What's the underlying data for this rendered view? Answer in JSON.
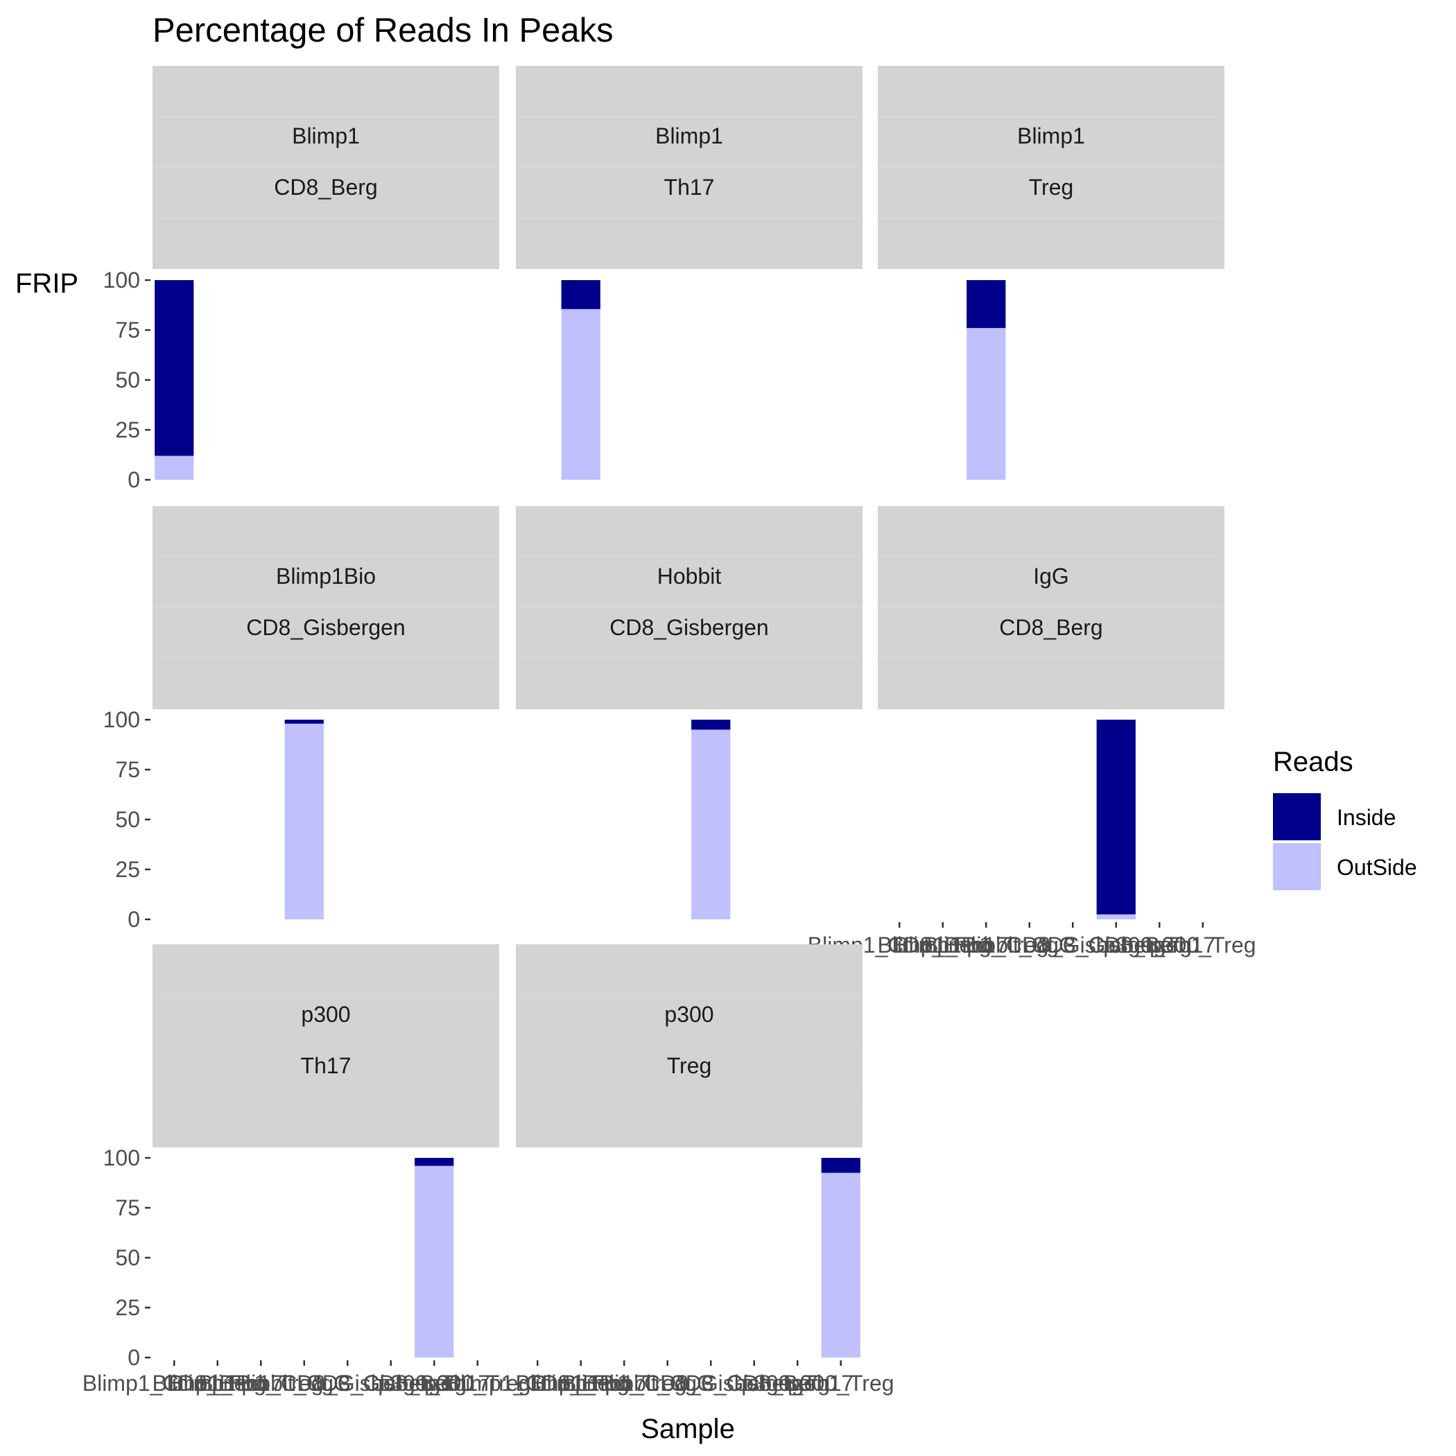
{
  "chart_data": {
    "type": "bar",
    "stacked": true,
    "title": "Percentage of Reads In Peaks",
    "xlabel": "Sample",
    "ylabel": "FRIP",
    "ylim": [
      0,
      100
    ],
    "yticks": [
      0,
      25,
      50,
      75,
      100
    ],
    "categories": [
      "Blimp1_CD8_Berg",
      "Blimp1_Th17",
      "Blimp1_Treg",
      "Blimp1Bio_CD8_Gisbergen",
      "Hobbit_CD8_Gisbergen",
      "IgG_CD8_Berg",
      "p300_Th17",
      "p300_Treg"
    ],
    "legend": {
      "title": "Reads",
      "position": "right",
      "entries": [
        "Inside",
        "OutSide"
      ]
    },
    "colors": {
      "Inside": "#00008b",
      "OutSide": "#c0c0ff",
      "strip": "#d3d3d3"
    },
    "panels": [
      {
        "strip": [
          "Blimp1",
          "CD8_Berg"
        ],
        "category_index": 0,
        "inside": 88,
        "outside": 12
      },
      {
        "strip": [
          "Blimp1",
          "Th17"
        ],
        "category_index": 1,
        "inside": 14.5,
        "outside": 85.5
      },
      {
        "strip": [
          "Blimp1",
          "Treg"
        ],
        "category_index": 2,
        "inside": 24,
        "outside": 76
      },
      {
        "strip": [
          "Blimp1Bio",
          "CD8_Gisbergen"
        ],
        "category_index": 3,
        "inside": 2,
        "outside": 98
      },
      {
        "strip": [
          "Hobbit",
          "CD8_Gisbergen"
        ],
        "category_index": 4,
        "inside": 5,
        "outside": 95
      },
      {
        "strip": [
          "IgG",
          "CD8_Berg"
        ],
        "category_index": 5,
        "inside": 97.5,
        "outside": 2.5
      },
      {
        "strip": [
          "p300",
          "Th17"
        ],
        "category_index": 6,
        "inside": 4,
        "outside": 96
      },
      {
        "strip": [
          "p300",
          "Treg"
        ],
        "category_index": 7,
        "inside": 7.5,
        "outside": 92.5
      }
    ]
  }
}
